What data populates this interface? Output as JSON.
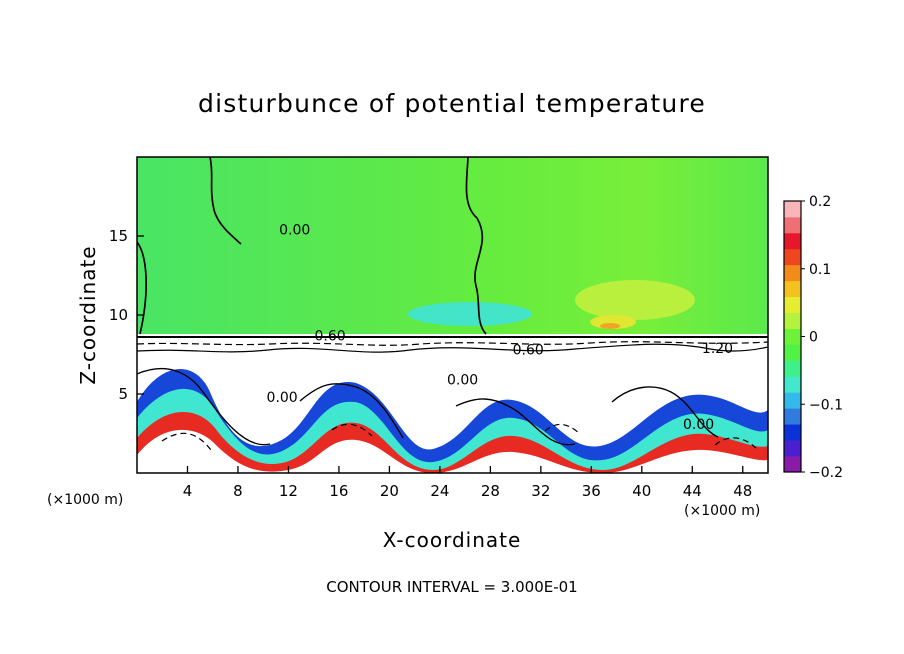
{
  "chart_data": {
    "type": "heatmap",
    "title": "disturbunce of potential temperature",
    "xlabel": "X-coordinate",
    "ylabel": "Z-coordinate",
    "x_unit": "(×1000 m)",
    "y_unit": "(×1000 m)",
    "xlim": [
      0,
      50
    ],
    "ylim": [
      0,
      20
    ],
    "x_ticks": [
      4,
      8,
      12,
      16,
      20,
      24,
      28,
      32,
      36,
      40,
      44,
      48
    ],
    "y_ticks": [
      5,
      10,
      15
    ],
    "colorbar": {
      "range": [
        -0.2,
        0.2
      ],
      "ticks": [
        {
          "value": 0.2,
          "label": "0.2"
        },
        {
          "value": 0.1,
          "label": "0.1"
        },
        {
          "value": 0.0,
          "label": "0"
        },
        {
          "value": -0.1,
          "label": "−0.1"
        },
        {
          "value": -0.2,
          "label": "−0.2"
        }
      ],
      "colors": [
        "#8a1aa8",
        "#4b1fd0",
        "#0a32d8",
        "#2f7be0",
        "#35b8ea",
        "#43e8cc",
        "#3fef8a",
        "#52f245",
        "#6cf23a",
        "#b4f23d",
        "#e6ec32",
        "#f4c21f",
        "#f28a1c",
        "#f0461f",
        "#e8162a",
        "#f06f74",
        "#f9b6b8"
      ]
    },
    "contour_labels": [
      {
        "text": "0.00",
        "x": 12.5,
        "z": 15.1
      },
      {
        "text": "0.60",
        "x": 15.3,
        "z": 8.4
      },
      {
        "text": "0.60",
        "x": 31.0,
        "z": 7.5
      },
      {
        "text": "1.20",
        "x": 46.0,
        "z": 7.6
      },
      {
        "text": "0.00",
        "x": 11.5,
        "z": 4.5
      },
      {
        "text": "0.00",
        "x": 25.8,
        "z": 5.6
      },
      {
        "text": "0.00",
        "x": 44.5,
        "z": 2.8
      }
    ],
    "contour_interval_text": "CONTOUR INTERVAL = 3.000E-01",
    "fields": {
      "upper_layer_value": 0.01,
      "lower_layer_value": 0.2,
      "inversion_z": 8.8
    }
  }
}
